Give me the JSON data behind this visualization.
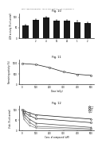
{
  "fig10": {
    "title": "Fig. 10",
    "bars": [
      62,
      88,
      100,
      85,
      82,
      78,
      72
    ],
    "bar_color": "#1a1a1a",
    "yerr": [
      4,
      5,
      4,
      4,
      4,
      4,
      4
    ],
    "xlabels": [
      "",
      "2",
      "4",
      "10",
      "20",
      "1",
      "2"
    ],
    "ylabel": "LDH activity (% of control)",
    "ylim": [
      0,
      120
    ],
    "yticks": [
      0,
      50,
      100
    ]
  },
  "fig11": {
    "title": "Fig. 11",
    "x": [
      0,
      100,
      200,
      300,
      400,
      500
    ],
    "y": [
      1000,
      950,
      800,
      600,
      480,
      430
    ],
    "ylabel": "Remaining activity (%)",
    "xlabel": "Dose (mGy)",
    "ylim": [
      0,
      1200
    ],
    "yticks": [
      0,
      500,
      1000
    ],
    "line_color": "#1a1a1a",
    "marker": "s"
  },
  "fig12": {
    "title": "Fig. 12",
    "x": [
      0,
      10,
      50,
      100,
      500
    ],
    "lines": [
      {
        "y": [
          100,
          95,
          85,
          75,
          55
        ],
        "color": "#111111",
        "marker": "o",
        "label": "C10"
      },
      {
        "y": [
          100,
          90,
          72,
          58,
          38
        ],
        "color": "#222222",
        "marker": "s",
        "label": "C11"
      },
      {
        "y": [
          100,
          82,
          55,
          35,
          15
        ],
        "color": "#444444",
        "marker": "^",
        "label": "C6"
      },
      {
        "y": [
          100,
          70,
          40,
          20,
          8
        ],
        "color": "#666666",
        "marker": "D",
        "label": "C8"
      },
      {
        "y": [
          100,
          55,
          25,
          12,
          3
        ],
        "color": "#888888",
        "marker": "v",
        "label": "8"
      }
    ],
    "ylabel": "Viab. (% of control)",
    "xlabel": "Conc. of compound (uM)",
    "ylim": [
      0,
      120
    ],
    "yticks": [
      0,
      50,
      100
    ]
  },
  "header_text": "Patent Application Publication   Aug. 26, 2010  Sheet 4 of 7   US 2010/0216764 A1",
  "bg_color": "#ffffff",
  "text_color": "#000000"
}
